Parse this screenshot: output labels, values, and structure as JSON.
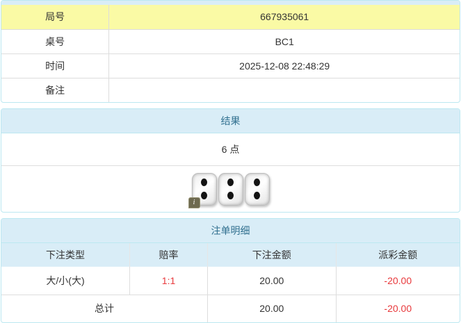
{
  "colors": {
    "panel_border": "#bce8f1",
    "panel_header_bg": "#d9edf7",
    "panel_header_text": "#31708f",
    "highlight_row_bg": "#fafaa5",
    "negative_amount_red": "#e8393c"
  },
  "round_info": {
    "rows": [
      {
        "label": "局号",
        "value": "667935061"
      },
      {
        "label": "桌号",
        "value": "BC1"
      },
      {
        "label": "时间",
        "value": "2025-12-08 22:48:29"
      },
      {
        "label": "备注",
        "value": ""
      }
    ]
  },
  "result": {
    "title": "结果",
    "points_text": "6 点",
    "dice": [
      2,
      2,
      2
    ],
    "info_icon_glyph": "i"
  },
  "bet_details": {
    "title": "注单明细",
    "columns": [
      "下注类型",
      "赔率",
      "下注金额",
      "派彩金额"
    ],
    "rows": [
      {
        "bet_type": "大/小(大)",
        "odds": "1:1",
        "bet_amount": "20.00",
        "payout": "-20.00"
      }
    ],
    "total": {
      "label": "总计",
      "bet_amount": "20.00",
      "payout": "-20.00"
    }
  }
}
